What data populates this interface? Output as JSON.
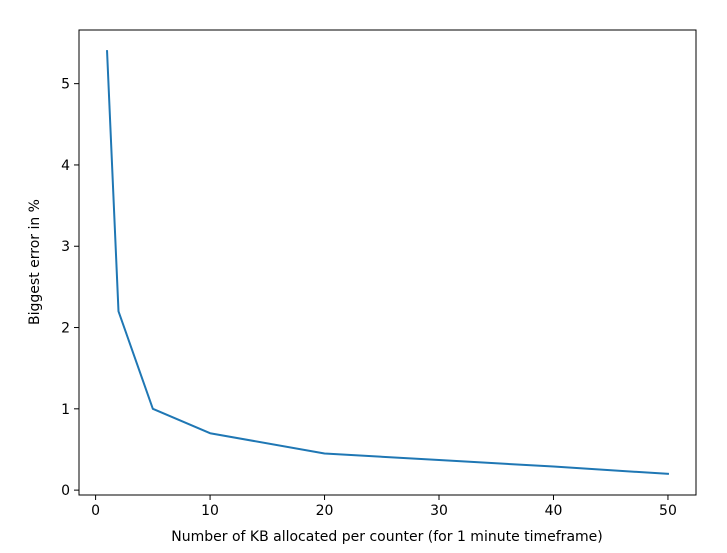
{
  "chart_data": {
    "type": "line",
    "title": "",
    "xlabel": "Number of KB allocated per counter (for 1 minute timeframe)",
    "ylabel": "Biggest error in %",
    "xlim": [
      -1.45,
      52.45
    ],
    "ylim": [
      -0.06,
      5.66
    ],
    "grid": false,
    "x_ticks": [
      0,
      10,
      20,
      30,
      40,
      50
    ],
    "y_ticks": [
      0,
      1,
      2,
      3,
      4,
      5
    ],
    "series": [
      {
        "color": "#1f77b4",
        "x": [
          1,
          2,
          5,
          10,
          20,
          30,
          40,
          50
        ],
        "y": [
          5.4,
          2.2,
          1.0,
          0.7,
          0.45,
          0.37,
          0.29,
          0.2
        ]
      }
    ]
  }
}
